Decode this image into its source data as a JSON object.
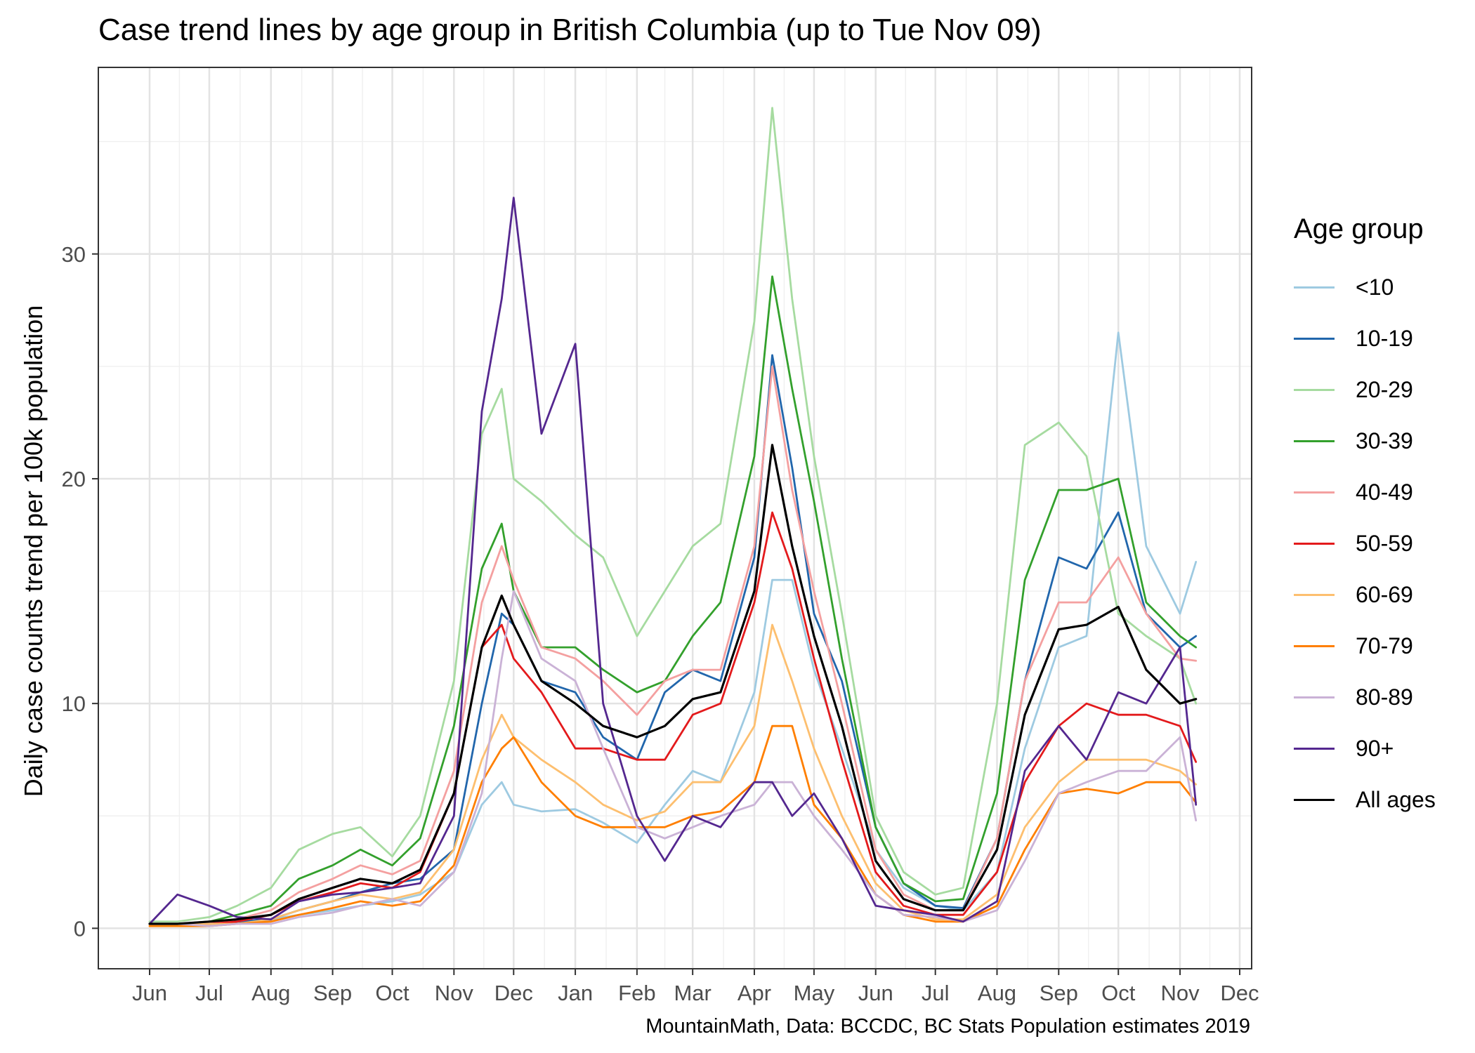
{
  "chart_data": {
    "type": "line",
    "title": "Case trend lines by age group in British Columbia (up to Tue Nov 09)",
    "ylabel": "Daily case counts trend per 100k population",
    "xlabel": "",
    "caption": "MountainMath, Data: BCCDC, BC Stats Population estimates 2019",
    "legend_title": "Age group",
    "legend_position": "right",
    "grid": true,
    "x_start": "2020-06-01",
    "x_ticks": [
      "Jun",
      "Jul",
      "Aug",
      "Sep",
      "Oct",
      "Nov",
      "Dec",
      "Jan",
      "Feb",
      "Mar",
      "Apr",
      "May",
      "Jun",
      "Jul",
      "Aug",
      "Sep",
      "Oct",
      "Nov",
      "Dec"
    ],
    "y_ticks": [
      "0",
      "10",
      "20",
      "30"
    ],
    "ylim": [
      -1.8,
      38.3
    ],
    "x": [
      "2020-06-01",
      "2020-06-15",
      "2020-07-01",
      "2020-07-15",
      "2020-08-01",
      "2020-08-15",
      "2020-09-01",
      "2020-09-15",
      "2020-10-01",
      "2020-10-15",
      "2020-11-01",
      "2020-11-15",
      "2020-11-25",
      "2020-12-01",
      "2020-12-15",
      "2021-01-01",
      "2021-01-15",
      "2021-02-01",
      "2021-02-15",
      "2021-03-01",
      "2021-03-15",
      "2021-04-01",
      "2021-04-10",
      "2021-04-20",
      "2021-05-01",
      "2021-05-15",
      "2021-06-01",
      "2021-06-15",
      "2021-07-01",
      "2021-07-15",
      "2021-08-01",
      "2021-08-15",
      "2021-09-01",
      "2021-09-15",
      "2021-10-01",
      "2021-10-15",
      "2021-11-01",
      "2021-11-09"
    ],
    "series": [
      {
        "name": "<10",
        "color": "#9ecae1",
        "values": [
          0.2,
          0.2,
          0.2,
          0.3,
          0.4,
          0.6,
          0.8,
          1.0,
          1.2,
          1.5,
          2.5,
          5.5,
          6.5,
          5.5,
          5.2,
          5.3,
          4.7,
          3.8,
          5.5,
          7.0,
          6.5,
          10.5,
          15.5,
          15.5,
          11.5,
          8.0,
          3.5,
          1.8,
          1.0,
          0.8,
          2.5,
          8.0,
          12.5,
          13.0,
          26.5,
          17.0,
          14.0,
          16.3
        ]
      },
      {
        "name": "10-19",
        "color": "#2166ac",
        "values": [
          0.2,
          0.2,
          0.2,
          0.3,
          0.4,
          0.8,
          1.2,
          1.6,
          2.0,
          2.2,
          3.5,
          10.0,
          14.0,
          13.5,
          11.0,
          10.5,
          8.5,
          7.5,
          10.5,
          11.5,
          11.0,
          16.5,
          25.5,
          20.5,
          14.0,
          11.0,
          4.5,
          2.0,
          1.0,
          0.9,
          4.0,
          11.0,
          16.5,
          16.0,
          18.5,
          14.0,
          12.5,
          13.0
        ]
      },
      {
        "name": "20-29",
        "color": "#a6dba0",
        "values": [
          0.3,
          0.3,
          0.5,
          1.0,
          1.8,
          3.5,
          4.2,
          4.5,
          3.2,
          5.0,
          11.0,
          22.0,
          24.0,
          20.0,
          19.0,
          17.5,
          16.5,
          13.0,
          15.0,
          17.0,
          18.0,
          27.0,
          36.5,
          28.0,
          21.0,
          14.0,
          5.0,
          2.5,
          1.5,
          1.8,
          10.0,
          21.5,
          22.5,
          21.0,
          14.0,
          13.0,
          12.0,
          10.0
        ]
      },
      {
        "name": "30-39",
        "color": "#33a02c",
        "values": [
          0.2,
          0.2,
          0.3,
          0.6,
          1.0,
          2.2,
          2.8,
          3.5,
          2.8,
          4.0,
          9.0,
          16.0,
          18.0,
          15.0,
          12.5,
          12.5,
          11.5,
          10.5,
          11.0,
          13.0,
          14.5,
          21.0,
          29.0,
          24.0,
          19.0,
          12.0,
          4.5,
          2.0,
          1.2,
          1.3,
          6.0,
          15.5,
          19.5,
          19.5,
          20.0,
          14.5,
          13.0,
          12.5
        ]
      },
      {
        "name": "40-49",
        "color": "#f4a0a0",
        "values": [
          0.2,
          0.2,
          0.2,
          0.4,
          0.8,
          1.6,
          2.2,
          2.8,
          2.4,
          3.0,
          7.0,
          14.5,
          17.0,
          15.5,
          12.5,
          12.0,
          11.0,
          9.5,
          11.0,
          11.5,
          11.5,
          17.0,
          25.0,
          19.5,
          15.0,
          10.0,
          3.5,
          1.5,
          0.8,
          0.8,
          4.0,
          11.0,
          14.5,
          14.5,
          16.5,
          14.0,
          12.0,
          11.9
        ]
      },
      {
        "name": "50-59",
        "color": "#e31a1c",
        "values": [
          0.2,
          0.2,
          0.2,
          0.3,
          0.6,
          1.2,
          1.6,
          2.0,
          1.8,
          2.5,
          6.0,
          12.5,
          13.5,
          12.0,
          10.5,
          8.0,
          8.0,
          7.5,
          7.5,
          9.5,
          10.0,
          14.5,
          18.5,
          16.0,
          12.0,
          7.5,
          2.5,
          1.0,
          0.6,
          0.6,
          2.5,
          6.5,
          9.0,
          10.0,
          9.5,
          9.5,
          9.0,
          7.4
        ]
      },
      {
        "name": "60-69",
        "color": "#fdbf6f",
        "values": [
          0.2,
          0.2,
          0.2,
          0.2,
          0.4,
          0.8,
          1.2,
          1.5,
          1.3,
          1.6,
          3.5,
          7.5,
          9.5,
          8.5,
          7.5,
          6.5,
          5.5,
          4.8,
          5.2,
          6.5,
          6.5,
          9.0,
          13.5,
          11.0,
          8.0,
          5.0,
          2.0,
          0.8,
          0.4,
          0.4,
          1.5,
          4.5,
          6.5,
          7.5,
          7.5,
          7.5,
          7.0,
          6.4
        ]
      },
      {
        "name": "70-79",
        "color": "#ff7f00",
        "values": [
          0.1,
          0.1,
          0.1,
          0.2,
          0.3,
          0.6,
          0.9,
          1.2,
          1.0,
          1.2,
          2.8,
          6.5,
          8.0,
          8.5,
          6.5,
          5.0,
          4.5,
          4.5,
          4.5,
          5.0,
          5.2,
          6.5,
          9.0,
          9.0,
          5.5,
          4.0,
          1.5,
          0.6,
          0.3,
          0.3,
          1.0,
          3.5,
          6.0,
          6.2,
          6.0,
          6.5,
          6.5,
          5.6
        ]
      },
      {
        "name": "80-89",
        "color": "#cab2d6",
        "values": [
          0.2,
          0.2,
          0.1,
          0.2,
          0.2,
          0.5,
          0.7,
          1.0,
          1.3,
          1.0,
          2.5,
          6.0,
          12.0,
          15.0,
          12.0,
          11.0,
          8.0,
          4.5,
          4.0,
          4.5,
          5.0,
          5.5,
          6.5,
          6.5,
          5.0,
          3.5,
          1.5,
          0.6,
          0.5,
          0.3,
          0.8,
          3.0,
          6.0,
          6.5,
          7.0,
          7.0,
          8.5,
          4.8
        ]
      },
      {
        "name": "90+",
        "color": "#54278f",
        "values": [
          0.2,
          1.5,
          1.0,
          0.5,
          0.4,
          1.2,
          1.5,
          1.6,
          1.8,
          2.0,
          5.0,
          23.0,
          28.0,
          32.5,
          22.0,
          26.0,
          10.0,
          5.0,
          3.0,
          5.0,
          4.5,
          6.5,
          6.5,
          5.0,
          6.0,
          4.0,
          1.0,
          0.8,
          0.6,
          0.3,
          1.2,
          7.0,
          9.0,
          7.5,
          10.5,
          10.0,
          12.5,
          5.5
        ]
      },
      {
        "name": "All ages",
        "color": "#000000",
        "values": [
          0.2,
          0.2,
          0.3,
          0.4,
          0.6,
          1.3,
          1.8,
          2.2,
          2.0,
          2.6,
          6.0,
          12.5,
          14.8,
          13.5,
          11.0,
          10.0,
          9.0,
          8.5,
          9.0,
          10.2,
          10.5,
          15.0,
          21.5,
          17.0,
          13.0,
          9.0,
          3.0,
          1.3,
          0.8,
          0.8,
          3.5,
          9.5,
          13.3,
          13.5,
          14.3,
          11.5,
          10.0,
          10.2
        ]
      }
    ]
  }
}
